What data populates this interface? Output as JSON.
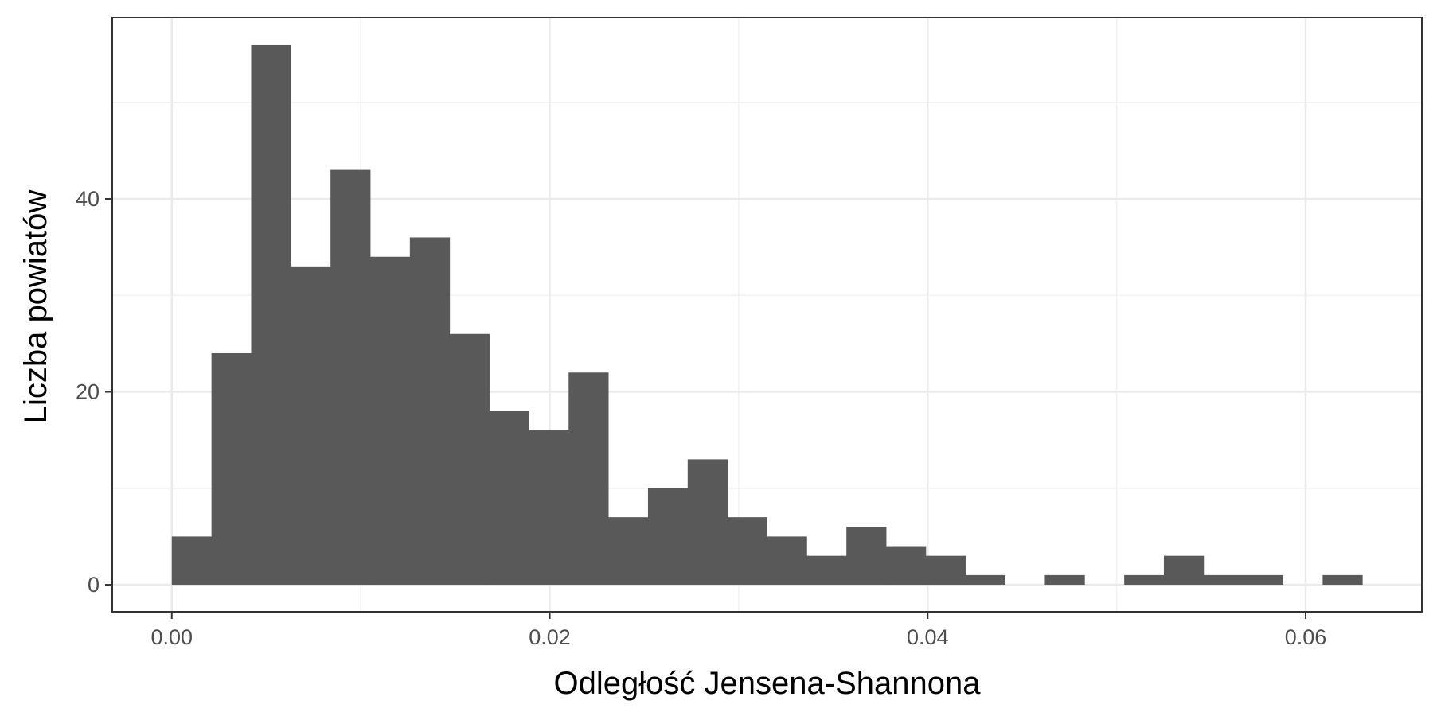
{
  "chart_data": {
    "type": "bar",
    "subtype": "histogram",
    "title": "",
    "xlabel": "Odległość Jensena-Shannona",
    "ylabel": "Liczba powiatów",
    "bin_width": 0.0021,
    "bins": [
      {
        "x0": 0.0,
        "x1": 0.0021,
        "count": 5
      },
      {
        "x0": 0.0021,
        "x1": 0.0042,
        "count": 24
      },
      {
        "x0": 0.0042,
        "x1": 0.0063,
        "count": 56
      },
      {
        "x0": 0.0063,
        "x1": 0.0084,
        "count": 33
      },
      {
        "x0": 0.0084,
        "x1": 0.0105,
        "count": 43
      },
      {
        "x0": 0.0105,
        "x1": 0.0126,
        "count": 34
      },
      {
        "x0": 0.0126,
        "x1": 0.0147,
        "count": 36
      },
      {
        "x0": 0.0147,
        "x1": 0.0168,
        "count": 26
      },
      {
        "x0": 0.0168,
        "x1": 0.0189,
        "count": 18
      },
      {
        "x0": 0.0189,
        "x1": 0.021,
        "count": 16
      },
      {
        "x0": 0.021,
        "x1": 0.0231,
        "count": 22
      },
      {
        "x0": 0.0231,
        "x1": 0.0252,
        "count": 7
      },
      {
        "x0": 0.0252,
        "x1": 0.0273,
        "count": 10
      },
      {
        "x0": 0.0273,
        "x1": 0.0294,
        "count": 13
      },
      {
        "x0": 0.0294,
        "x1": 0.0315,
        "count": 7
      },
      {
        "x0": 0.0315,
        "x1": 0.0336,
        "count": 5
      },
      {
        "x0": 0.0336,
        "x1": 0.0357,
        "count": 3
      },
      {
        "x0": 0.0357,
        "x1": 0.0378,
        "count": 6
      },
      {
        "x0": 0.0378,
        "x1": 0.0399,
        "count": 4
      },
      {
        "x0": 0.0399,
        "x1": 0.042,
        "count": 3
      },
      {
        "x0": 0.042,
        "x1": 0.0441,
        "count": 1
      },
      {
        "x0": 0.0441,
        "x1": 0.0462,
        "count": 0
      },
      {
        "x0": 0.0462,
        "x1": 0.0483,
        "count": 1
      },
      {
        "x0": 0.0483,
        "x1": 0.0504,
        "count": 0
      },
      {
        "x0": 0.0504,
        "x1": 0.0525,
        "count": 1
      },
      {
        "x0": 0.0525,
        "x1": 0.0546,
        "count": 3
      },
      {
        "x0": 0.0546,
        "x1": 0.0567,
        "count": 1
      },
      {
        "x0": 0.0567,
        "x1": 0.0588,
        "count": 1
      },
      {
        "x0": 0.0588,
        "x1": 0.0609,
        "count": 0
      },
      {
        "x0": 0.0609,
        "x1": 0.063,
        "count": 1
      }
    ],
    "xlim": [
      -0.00315,
      0.06615
    ],
    "ylim": [
      -2.8,
      58.8
    ],
    "x_ticks": [
      {
        "value": 0.0,
        "label": "0.00"
      },
      {
        "value": 0.02,
        "label": "0.02"
      },
      {
        "value": 0.04,
        "label": "0.04"
      },
      {
        "value": 0.06,
        "label": "0.06"
      }
    ],
    "y_ticks": [
      {
        "value": 0,
        "label": "0"
      },
      {
        "value": 20,
        "label": "20"
      },
      {
        "value": 40,
        "label": "40"
      }
    ],
    "grid": true,
    "legend": "none",
    "colors": {
      "bar_fill": "#595959",
      "grid_major": "#ebebeb",
      "grid_minor": "#f2f2f2",
      "panel_border": "#333333",
      "tick_text": "#4d4d4d",
      "axis_title": "#000000"
    }
  }
}
